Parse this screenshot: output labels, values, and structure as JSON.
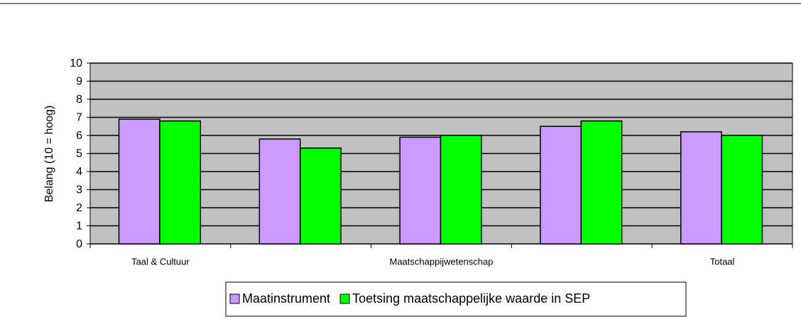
{
  "chart_data": {
    "type": "bar",
    "ylabel": "Belang (10 = hoog)",
    "categories": [
      "Taal & Cultuur",
      null,
      "Maatschappijwetenschap",
      null,
      "Totaal"
    ],
    "series": [
      {
        "name": "Maatinstrument",
        "color": "#cc99ff",
        "values": [
          6.9,
          5.8,
          5.9,
          6.5,
          6.2
        ]
      },
      {
        "name": "Toetsing maatschappelijke waarde in SEP",
        "color": "#00ff00",
        "values": [
          6.8,
          5.3,
          6.0,
          6.8,
          6.0
        ]
      }
    ],
    "ylim": [
      0,
      10
    ],
    "yticks": [
      0,
      1,
      2,
      3,
      4,
      5,
      6,
      7,
      8,
      9,
      10
    ],
    "grid": true,
    "plot_background": "#c0c0c0",
    "legend": "bottom"
  }
}
